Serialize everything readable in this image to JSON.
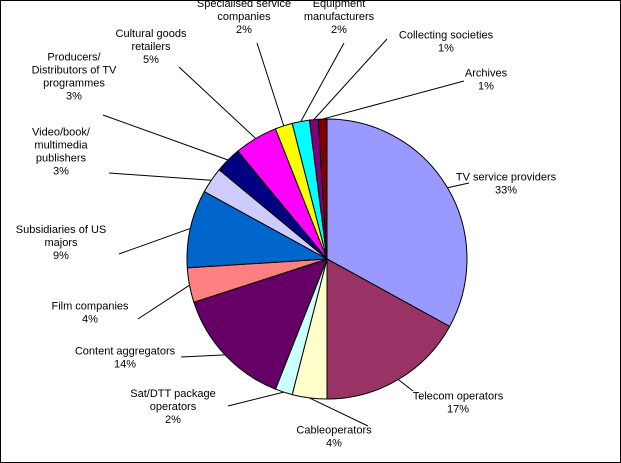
{
  "chart_data": {
    "type": "pie",
    "start_angle_deg": 0,
    "direction": "clockwise",
    "slices": [
      {
        "label": [
          "TV service providers"
        ],
        "pct_label": "33%",
        "value": 33,
        "color": "#9999FF"
      },
      {
        "label": [
          "Telecom operators"
        ],
        "pct_label": "17%",
        "value": 17,
        "color": "#993366"
      },
      {
        "label": [
          "Cableoperators"
        ],
        "pct_label": "4%",
        "value": 4,
        "color": "#FFFFCC"
      },
      {
        "label": [
          "Sat/DTT package",
          "operators"
        ],
        "pct_label": "2%",
        "value": 2,
        "color": "#CCFFFF"
      },
      {
        "label": [
          "Content aggregators"
        ],
        "pct_label": "14%",
        "value": 14,
        "color": "#660066"
      },
      {
        "label": [
          "Film companies"
        ],
        "pct_label": "4%",
        "value": 4,
        "color": "#FF8080"
      },
      {
        "label": [
          "Subsidiaries of US",
          "majors"
        ],
        "pct_label": "9%",
        "value": 9,
        "color": "#0066CC"
      },
      {
        "label": [
          "Video/book/",
          "multimedia",
          "publishers"
        ],
        "pct_label": "3%",
        "value": 3,
        "color": "#CCCCFF"
      },
      {
        "label": [
          "Producers/",
          "Distributors of TV",
          "programmes"
        ],
        "pct_label": "3%",
        "value": 3,
        "color": "#000080"
      },
      {
        "label": [
          "Cultural goods",
          "retailers"
        ],
        "pct_label": "5%",
        "value": 5,
        "color": "#FF00FF"
      },
      {
        "label": [
          "Specialised service",
          "companies"
        ],
        "pct_label": "2%",
        "value": 2,
        "color": "#FFFF00"
      },
      {
        "label": [
          "Equipment",
          "manufacturers"
        ],
        "pct_label": "2%",
        "value": 2,
        "color": "#00FFFF"
      },
      {
        "label": [
          "Collecting societies"
        ],
        "pct_label": "1%",
        "value": 1,
        "color": "#800080"
      },
      {
        "label": [
          "Archives"
        ],
        "pct_label": "1%",
        "value": 1,
        "color": "#800000"
      }
    ]
  }
}
